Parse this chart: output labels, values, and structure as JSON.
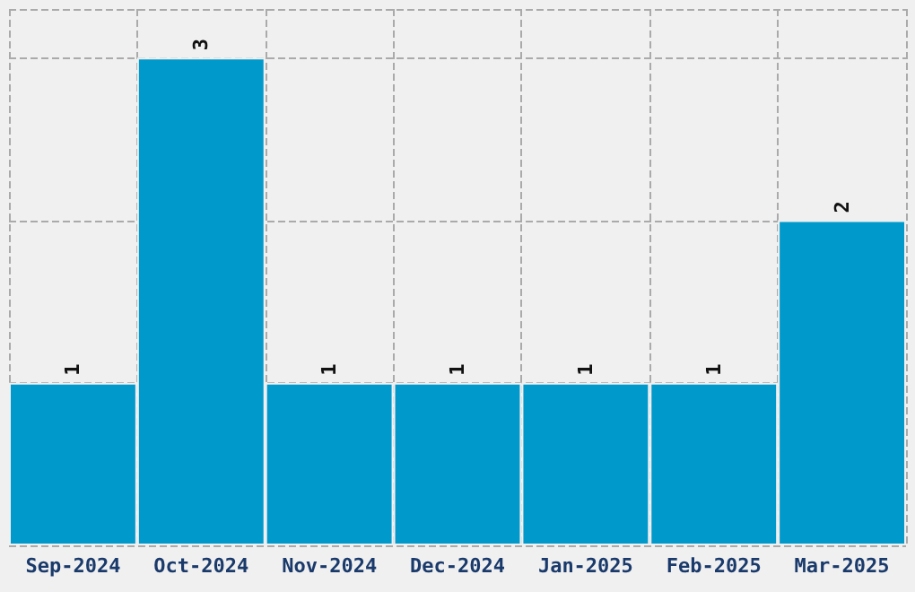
{
  "chart_data": {
    "type": "bar",
    "categories": [
      "Sep-2024",
      "Oct-2024",
      "Nov-2024",
      "Dec-2024",
      "Jan-2025",
      "Feb-2025",
      "Mar-2025"
    ],
    "values": [
      1,
      3,
      1,
      1,
      1,
      1,
      2
    ],
    "color": "#0099cc",
    "ylim": [
      0,
      3.3
    ],
    "data_labels": true,
    "grid": true,
    "tick_labels": "x"
  }
}
